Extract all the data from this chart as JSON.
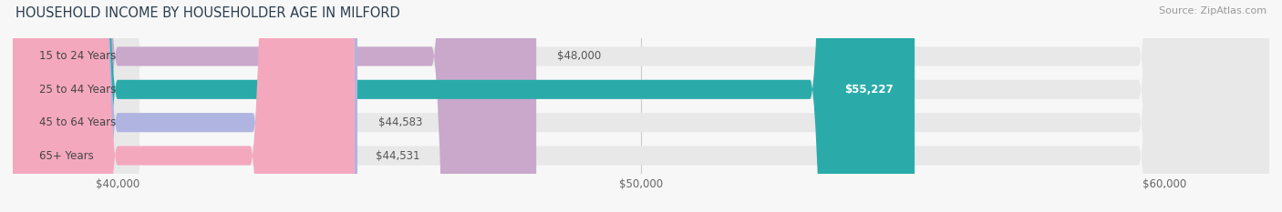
{
  "title": "HOUSEHOLD INCOME BY HOUSEHOLDER AGE IN MILFORD",
  "source": "Source: ZipAtlas.com",
  "categories": [
    "15 to 24 Years",
    "25 to 44 Years",
    "45 to 64 Years",
    "65+ Years"
  ],
  "values": [
    48000,
    55227,
    44583,
    44531
  ],
  "labels": [
    "$48,000",
    "$55,227",
    "$44,583",
    "$44,531"
  ],
  "bar_colors": [
    "#c9a8cc",
    "#2aabaa",
    "#b0b4e0",
    "#f4a8be"
  ],
  "label_inside": [
    false,
    true,
    false,
    false
  ],
  "xmin": 38000,
  "xmax": 62000,
  "xticks": [
    40000,
    50000,
    60000
  ],
  "xticklabels": [
    "$40,000",
    "$50,000",
    "$60,000"
  ],
  "title_fontsize": 10.5,
  "source_fontsize": 8,
  "label_fontsize": 8.5,
  "cat_fontsize": 8.5,
  "tick_fontsize": 8.5,
  "bar_height": 0.58,
  "background_color": "#f7f7f7",
  "bar_bg_color": "#e8e8e8",
  "grid_color": "#cccccc",
  "cat_text_color": "#444444",
  "val_text_color": "#555555",
  "title_color": "#2c3e50"
}
